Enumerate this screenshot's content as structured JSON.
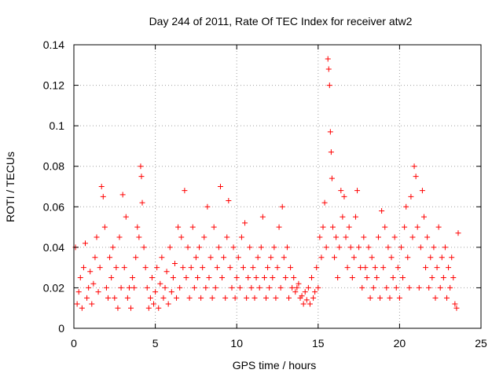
{
  "chart_data": {
    "type": "scatter",
    "title": "Day 244 of 2011, Rate Of TEC Index for receiver atw2",
    "xlabel": "GPS time / hours",
    "ylabel": "ROTI / TECUs",
    "xlim": [
      0,
      25
    ],
    "ylim": [
      0,
      0.14
    ],
    "x_ticks": [
      0,
      5,
      10,
      15,
      20,
      25
    ],
    "x_tick_labels": [
      "0",
      "5",
      "10",
      "15",
      "20",
      "25"
    ],
    "y_ticks": [
      0,
      0.02,
      0.04,
      0.06,
      0.08,
      0.1,
      0.12,
      0.14
    ],
    "y_tick_labels": [
      "0",
      "0.02",
      "0.04",
      "0.06",
      "0.08",
      "0.1",
      "0.12",
      "0.14"
    ],
    "grid": true,
    "marker": "plus",
    "color": "#ff0000",
    "series": [
      {
        "values": [
          [
            0.1,
            0.04
          ],
          [
            0.2,
            0.012
          ],
          [
            0.3,
            0.018
          ],
          [
            0.4,
            0.025
          ],
          [
            0.5,
            0.01
          ],
          [
            0.6,
            0.03
          ],
          [
            0.7,
            0.042
          ],
          [
            0.8,
            0.015
          ],
          [
            0.9,
            0.02
          ],
          [
            1.0,
            0.028
          ],
          [
            1.1,
            0.012
          ],
          [
            1.2,
            0.022
          ],
          [
            1.3,
            0.035
          ],
          [
            1.4,
            0.045
          ],
          [
            1.5,
            0.018
          ],
          [
            1.6,
            0.03
          ],
          [
            1.7,
            0.07
          ],
          [
            1.8,
            0.065
          ],
          [
            1.9,
            0.05
          ],
          [
            2.0,
            0.02
          ],
          [
            2.1,
            0.015
          ],
          [
            2.2,
            0.035
          ],
          [
            2.3,
            0.025
          ],
          [
            2.4,
            0.04
          ],
          [
            2.5,
            0.015
          ],
          [
            2.6,
            0.03
          ],
          [
            2.7,
            0.01
          ],
          [
            2.8,
            0.045
          ],
          [
            2.9,
            0.02
          ],
          [
            3.0,
            0.066
          ],
          [
            3.1,
            0.03
          ],
          [
            3.2,
            0.055
          ],
          [
            3.3,
            0.015
          ],
          [
            3.4,
            0.02
          ],
          [
            3.5,
            0.01
          ],
          [
            3.6,
            0.025
          ],
          [
            3.7,
            0.02
          ],
          [
            3.8,
            0.035
          ],
          [
            3.9,
            0.05
          ],
          [
            4.0,
            0.045
          ],
          [
            4.1,
            0.08
          ],
          [
            4.15,
            0.075
          ],
          [
            4.2,
            0.062
          ],
          [
            4.3,
            0.04
          ],
          [
            4.4,
            0.03
          ],
          [
            4.5,
            0.02
          ],
          [
            4.6,
            0.01
          ],
          [
            4.7,
            0.015
          ],
          [
            4.8,
            0.025
          ],
          [
            4.9,
            0.012
          ],
          [
            5.0,
            0.018
          ],
          [
            5.1,
            0.03
          ],
          [
            5.2,
            0.01
          ],
          [
            5.3,
            0.022
          ],
          [
            5.4,
            0.035
          ],
          [
            5.5,
            0.015
          ],
          [
            5.6,
            0.02
          ],
          [
            5.7,
            0.028
          ],
          [
            5.8,
            0.012
          ],
          [
            5.9,
            0.04
          ],
          [
            6.0,
            0.018
          ],
          [
            6.1,
            0.025
          ],
          [
            6.2,
            0.032
          ],
          [
            6.3,
            0.015
          ],
          [
            6.4,
            0.05
          ],
          [
            6.5,
            0.02
          ],
          [
            6.6,
            0.045
          ],
          [
            6.7,
            0.03
          ],
          [
            6.8,
            0.068
          ],
          [
            6.9,
            0.025
          ],
          [
            7.0,
            0.04
          ],
          [
            7.1,
            0.015
          ],
          [
            7.2,
            0.03
          ],
          [
            7.3,
            0.05
          ],
          [
            7.4,
            0.02
          ],
          [
            7.5,
            0.035
          ],
          [
            7.6,
            0.025
          ],
          [
            7.7,
            0.04
          ],
          [
            7.8,
            0.015
          ],
          [
            7.9,
            0.03
          ],
          [
            8.0,
            0.045
          ],
          [
            8.1,
            0.02
          ],
          [
            8.2,
            0.06
          ],
          [
            8.3,
            0.025
          ],
          [
            8.4,
            0.035
          ],
          [
            8.5,
            0.015
          ],
          [
            8.6,
            0.05
          ],
          [
            8.7,
            0.02
          ],
          [
            8.8,
            0.03
          ],
          [
            8.9,
            0.04
          ],
          [
            9.0,
            0.07
          ],
          [
            9.1,
            0.025
          ],
          [
            9.2,
            0.035
          ],
          [
            9.3,
            0.015
          ],
          [
            9.4,
            0.045
          ],
          [
            9.5,
            0.063
          ],
          [
            9.6,
            0.03
          ],
          [
            9.7,
            0.02
          ],
          [
            9.8,
            0.04
          ],
          [
            9.9,
            0.015
          ],
          [
            10.0,
            0.025
          ],
          [
            10.1,
            0.035
          ],
          [
            10.2,
            0.02
          ],
          [
            10.3,
            0.045
          ],
          [
            10.4,
            0.03
          ],
          [
            10.5,
            0.052
          ],
          [
            10.6,
            0.015
          ],
          [
            10.7,
            0.025
          ],
          [
            10.8,
            0.04
          ],
          [
            10.9,
            0.02
          ],
          [
            11.0,
            0.03
          ],
          [
            11.1,
            0.015
          ],
          [
            11.2,
            0.025
          ],
          [
            11.3,
            0.035
          ],
          [
            11.4,
            0.02
          ],
          [
            11.5,
            0.04
          ],
          [
            11.6,
            0.055
          ],
          [
            11.7,
            0.025
          ],
          [
            11.8,
            0.015
          ],
          [
            11.9,
            0.03
          ],
          [
            12.0,
            0.02
          ],
          [
            12.1,
            0.035
          ],
          [
            12.2,
            0.025
          ],
          [
            12.3,
            0.04
          ],
          [
            12.4,
            0.015
          ],
          [
            12.5,
            0.03
          ],
          [
            12.6,
            0.05
          ],
          [
            12.7,
            0.02
          ],
          [
            12.8,
            0.06
          ],
          [
            12.9,
            0.035
          ],
          [
            13.0,
            0.025
          ],
          [
            13.1,
            0.04
          ],
          [
            13.2,
            0.015
          ],
          [
            13.3,
            0.03
          ],
          [
            13.4,
            0.02
          ],
          [
            13.5,
            0.025
          ],
          [
            13.6,
            0.018
          ],
          [
            13.7,
            0.02
          ],
          [
            13.8,
            0.022
          ],
          [
            13.9,
            0.015
          ],
          [
            14.0,
            0.016
          ],
          [
            14.1,
            0.012
          ],
          [
            14.2,
            0.018
          ],
          [
            14.3,
            0.014
          ],
          [
            14.4,
            0.02
          ],
          [
            14.5,
            0.012
          ],
          [
            14.6,
            0.025
          ],
          [
            14.7,
            0.015
          ],
          [
            14.8,
            0.018
          ],
          [
            14.9,
            0.03
          ],
          [
            15.0,
            0.02
          ],
          [
            15.1,
            0.045
          ],
          [
            15.2,
            0.035
          ],
          [
            15.3,
            0.05
          ],
          [
            15.4,
            0.062
          ],
          [
            15.5,
            0.04
          ],
          [
            15.6,
            0.133
          ],
          [
            15.65,
            0.128
          ],
          [
            15.7,
            0.12
          ],
          [
            15.75,
            0.097
          ],
          [
            15.8,
            0.087
          ],
          [
            15.85,
            0.074
          ],
          [
            15.9,
            0.05
          ],
          [
            16.0,
            0.035
          ],
          [
            16.1,
            0.045
          ],
          [
            16.2,
            0.025
          ],
          [
            16.3,
            0.04
          ],
          [
            16.4,
            0.068
          ],
          [
            16.5,
            0.055
          ],
          [
            16.6,
            0.065
          ],
          [
            16.7,
            0.045
          ],
          [
            16.8,
            0.03
          ],
          [
            16.9,
            0.05
          ],
          [
            17.0,
            0.04
          ],
          [
            17.1,
            0.025
          ],
          [
            17.2,
            0.035
          ],
          [
            17.3,
            0.055
          ],
          [
            17.4,
            0.068
          ],
          [
            17.5,
            0.04
          ],
          [
            17.6,
            0.03
          ],
          [
            17.7,
            0.02
          ],
          [
            17.8,
            0.045
          ],
          [
            17.9,
            0.03
          ],
          [
            18.0,
            0.025
          ],
          [
            18.1,
            0.04
          ],
          [
            18.2,
            0.015
          ],
          [
            18.3,
            0.035
          ],
          [
            18.4,
            0.02
          ],
          [
            18.5,
            0.03
          ],
          [
            18.6,
            0.025
          ],
          [
            18.7,
            0.045
          ],
          [
            18.8,
            0.015
          ],
          [
            18.9,
            0.058
          ],
          [
            19.0,
            0.03
          ],
          [
            19.1,
            0.05
          ],
          [
            19.2,
            0.02
          ],
          [
            19.3,
            0.04
          ],
          [
            19.4,
            0.015
          ],
          [
            19.5,
            0.035
          ],
          [
            19.6,
            0.025
          ],
          [
            19.7,
            0.045
          ],
          [
            19.8,
            0.02
          ],
          [
            19.9,
            0.03
          ],
          [
            20.0,
            0.015
          ],
          [
            20.1,
            0.04
          ],
          [
            20.2,
            0.025
          ],
          [
            20.3,
            0.05
          ],
          [
            20.4,
            0.06
          ],
          [
            20.5,
            0.035
          ],
          [
            20.6,
            0.02
          ],
          [
            20.7,
            0.065
          ],
          [
            20.8,
            0.045
          ],
          [
            20.9,
            0.08
          ],
          [
            21.0,
            0.075
          ],
          [
            21.1,
            0.05
          ],
          [
            21.2,
            0.02
          ],
          [
            21.3,
            0.04
          ],
          [
            21.4,
            0.068
          ],
          [
            21.5,
            0.055
          ],
          [
            21.6,
            0.03
          ],
          [
            21.7,
            0.045
          ],
          [
            21.8,
            0.02
          ],
          [
            21.9,
            0.035
          ],
          [
            22.0,
            0.025
          ],
          [
            22.1,
            0.04
          ],
          [
            22.2,
            0.015
          ],
          [
            22.3,
            0.03
          ],
          [
            22.4,
            0.05
          ],
          [
            22.5,
            0.02
          ],
          [
            22.6,
            0.035
          ],
          [
            22.7,
            0.025
          ],
          [
            22.8,
            0.04
          ],
          [
            22.9,
            0.015
          ],
          [
            23.0,
            0.03
          ],
          [
            23.1,
            0.02
          ],
          [
            23.2,
            0.035
          ],
          [
            23.3,
            0.025
          ],
          [
            23.4,
            0.012
          ],
          [
            23.5,
            0.01
          ],
          [
            23.6,
            0.047
          ]
        ]
      }
    ]
  }
}
